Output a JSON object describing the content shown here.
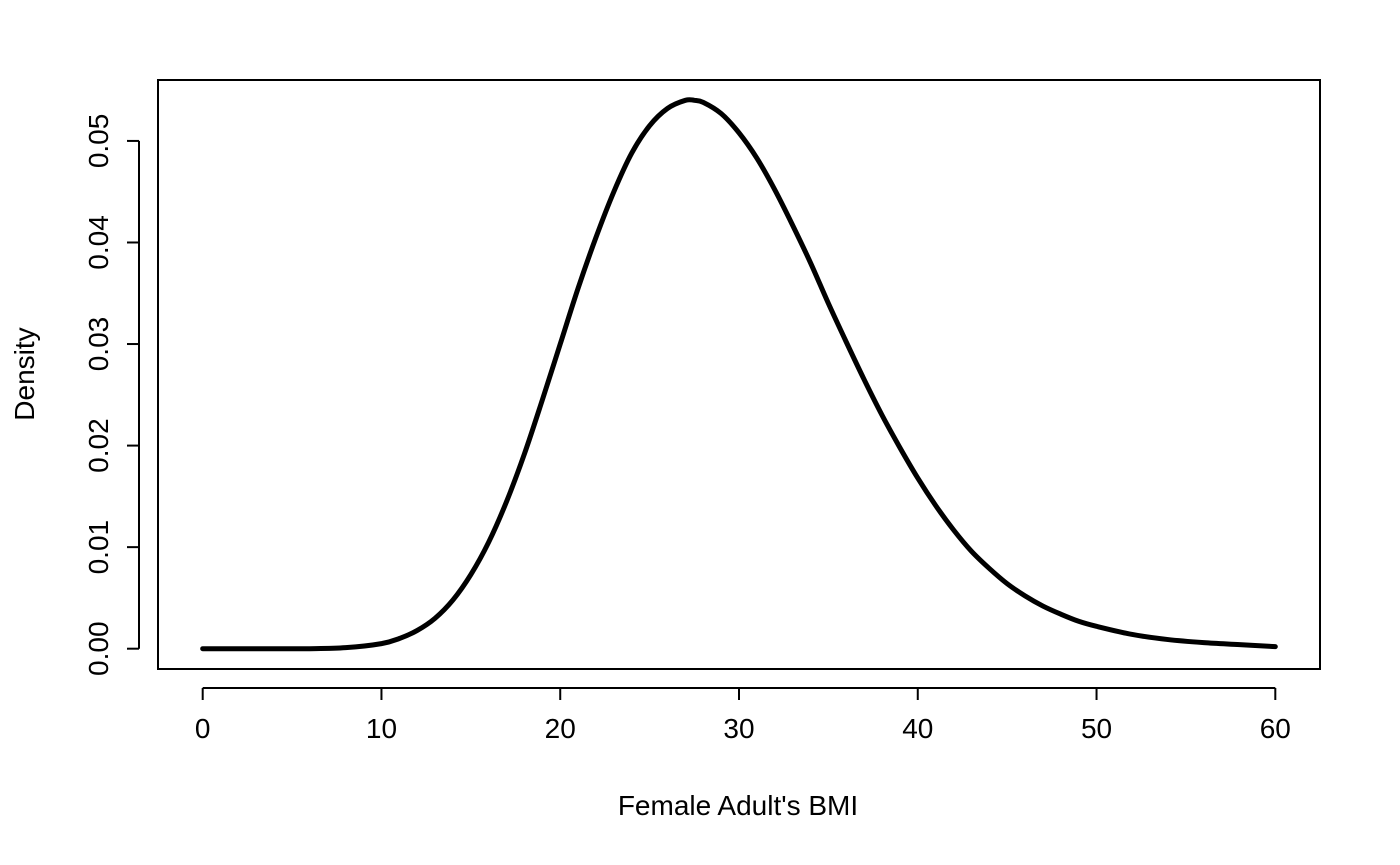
{
  "chart_data": {
    "type": "line",
    "title": "",
    "xlabel": "Female Adult's BMI",
    "ylabel": "Density",
    "xlim": [
      -2.5,
      62.5
    ],
    "ylim": [
      -0.002,
      0.056
    ],
    "x_ticks": [
      {
        "value": 0,
        "label": "0"
      },
      {
        "value": 10,
        "label": "10"
      },
      {
        "value": 20,
        "label": "20"
      },
      {
        "value": 30,
        "label": "30"
      },
      {
        "value": 40,
        "label": "40"
      },
      {
        "value": 50,
        "label": "50"
      },
      {
        "value": 60,
        "label": "60"
      }
    ],
    "y_ticks": [
      {
        "value": 0.0,
        "label": "0.00"
      },
      {
        "value": 0.01,
        "label": "0.01"
      },
      {
        "value": 0.02,
        "label": "0.02"
      },
      {
        "value": 0.03,
        "label": "0.03"
      },
      {
        "value": 0.04,
        "label": "0.04"
      },
      {
        "value": 0.05,
        "label": "0.05"
      }
    ],
    "grid": false,
    "series": [
      {
        "color": "#000000",
        "x": [
          0,
          2,
          4,
          6,
          8,
          10,
          11,
          12,
          13,
          14,
          15,
          16,
          17,
          18,
          19,
          20,
          21,
          22,
          23,
          24,
          25,
          26,
          27,
          27.5,
          28,
          29,
          30,
          31,
          32,
          33,
          34,
          35,
          36,
          37,
          38,
          39,
          40,
          41,
          42,
          43,
          44,
          45,
          46,
          47,
          48,
          49,
          50,
          52,
          54,
          56,
          58,
          60
        ],
        "y": [
          0.0,
          0.0,
          0.0,
          0.0,
          0.0001,
          0.0005,
          0.001,
          0.0018,
          0.003,
          0.0048,
          0.0073,
          0.0105,
          0.0145,
          0.0192,
          0.0245,
          0.03,
          0.0355,
          0.0405,
          0.045,
          0.0488,
          0.0515,
          0.0532,
          0.054,
          0.054,
          0.0538,
          0.0527,
          0.0508,
          0.0483,
          0.0452,
          0.0417,
          0.038,
          0.034,
          0.0302,
          0.0265,
          0.023,
          0.0198,
          0.0168,
          0.0141,
          0.0117,
          0.0096,
          0.0079,
          0.0064,
          0.0052,
          0.0042,
          0.0034,
          0.0027,
          0.0022,
          0.0014,
          0.0009,
          0.0006,
          0.0004,
          0.0002
        ]
      }
    ]
  }
}
